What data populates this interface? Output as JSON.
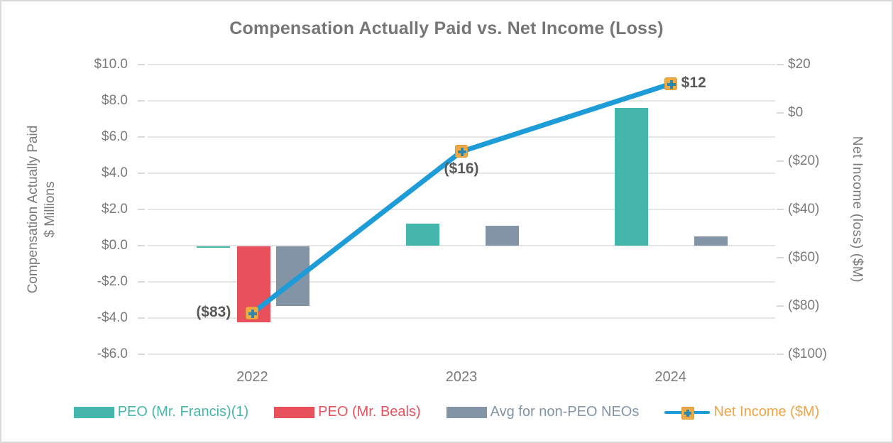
{
  "title": "Compensation Actually Paid vs. Net Income (Loss)",
  "left_axis": {
    "title_line1": "Compensation Actually Paid",
    "title_line2": "$ Millions",
    "ticks": [
      "$10.0",
      "$8.0",
      "$6.0",
      "$4.0",
      "$2.0",
      "$0.0",
      "-$2.0",
      "-$4.0",
      "-$6.0"
    ]
  },
  "right_axis": {
    "title": "Net Income (loss) ($M)",
    "ticks": [
      "$20",
      "$0",
      "($20)",
      "($40)",
      "($60)",
      "($80)",
      "($100)"
    ]
  },
  "x_axis": {
    "categories": [
      "2022",
      "2023",
      "2024"
    ]
  },
  "legend": [
    {
      "label": "PEO (Mr. Francis)(1)",
      "swatch": "bar",
      "color": "#44b6ab"
    },
    {
      "label": "PEO (Mr. Beals)",
      "swatch": "bar",
      "color": "#e8515c"
    },
    {
      "label": "Avg for non-PEO NEOs",
      "swatch": "bar",
      "color": "#8294a6"
    },
    {
      "label": "Net Income ($M)",
      "swatch": "line",
      "color": "#f0a542",
      "line_color": "#1e9cd7",
      "marker_color": "#efaa41",
      "marker_cross_color": "#2e86ad"
    }
  ],
  "colors": {
    "title_text": "#767676",
    "axis_text": "#7a7a7a",
    "data_label_text": "#595959",
    "gridline": "#e5e5e5",
    "border": "#d9d9d9",
    "peo_francis": "#44b6ab",
    "peo_beals": "#e8515c",
    "avg_non_peo": "#8294a6",
    "net_income_line": "#1e9cd7",
    "marker_fill": "#efaa41",
    "marker_border": "#dd9733",
    "marker_cross": "#2e86ad"
  },
  "chart_data": {
    "type": "bar+line",
    "title": "Compensation Actually Paid vs. Net Income (Loss)",
    "categories": [
      "2022",
      "2023",
      "2024"
    ],
    "left_ylabel": "Compensation Actually Paid $ Millions",
    "right_ylabel": "Net Income (loss) ($M)",
    "left_ylim": [
      -6,
      10
    ],
    "right_ylim": [
      -100,
      20
    ],
    "grid": true,
    "legend_position": "bottom",
    "series": [
      {
        "name": "PEO (Mr. Francis)(1)",
        "type": "bar",
        "axis": "left",
        "color": "#44b6ab",
        "values": [
          -0.05,
          1.2,
          7.6
        ]
      },
      {
        "name": "PEO (Mr. Beals)",
        "type": "bar",
        "axis": "left",
        "color": "#e8515c",
        "values": [
          -4.2,
          null,
          null
        ]
      },
      {
        "name": "Avg for non-PEO NEOs",
        "type": "bar",
        "axis": "left",
        "color": "#8294a6",
        "values": [
          -3.3,
          1.1,
          0.5
        ]
      },
      {
        "name": "Net Income ($M)",
        "type": "line",
        "axis": "right",
        "color": "#1e9cd7",
        "marker_color": "#efaa41",
        "marker_cross_color": "#2e86ad",
        "values": [
          -83,
          -16,
          12
        ],
        "point_labels": [
          "($83)",
          "($16)",
          "$12"
        ],
        "point_label_positions": [
          "left",
          "below",
          "right"
        ]
      }
    ]
  }
}
